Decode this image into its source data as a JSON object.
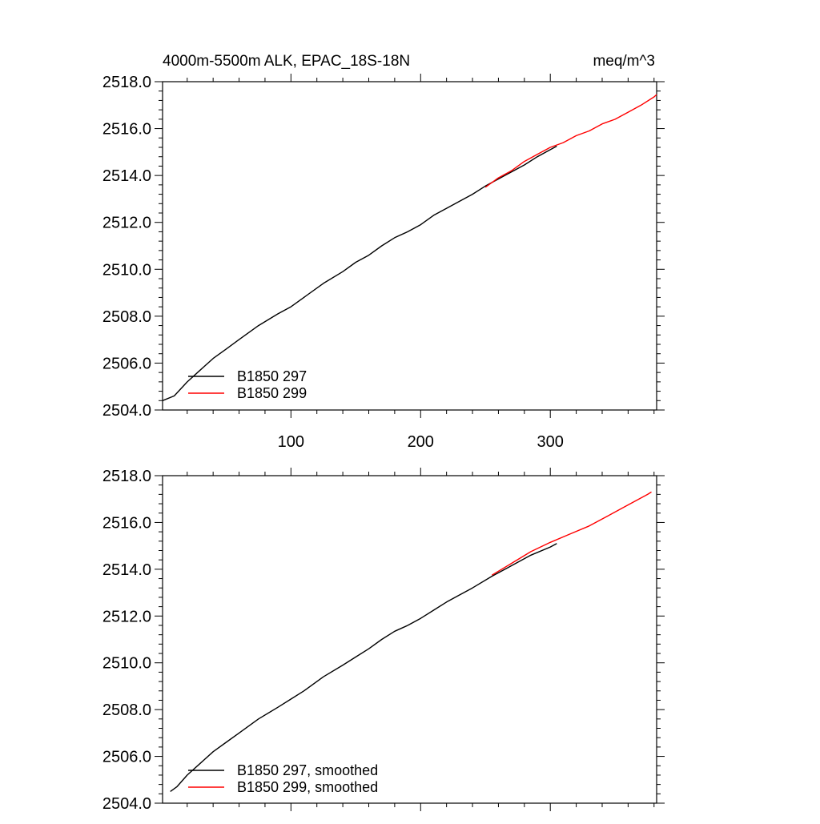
{
  "chart_data": [
    {
      "type": "line",
      "title": "4000m-5500m ALK, EPAC_18S-18N",
      "units": "meq/m^3",
      "xlim": [
        1,
        382
      ],
      "ylim": [
        2504.0,
        2518.0
      ],
      "xticks": [
        100,
        200,
        300
      ],
      "yticks": [
        "2504.0",
        "2506.0",
        "2508.0",
        "2510.0",
        "2512.0",
        "2514.0",
        "2516.0",
        "2518.0"
      ],
      "legend_position": "bottom-left",
      "series": [
        {
          "name": "B1850 297",
          "color": "#000000",
          "x": [
            1,
            10,
            20,
            30,
            40,
            50,
            60,
            75,
            90,
            100,
            110,
            125,
            140,
            150,
            160,
            170,
            180,
            190,
            200,
            210,
            220,
            230,
            240,
            250,
            260,
            270,
            280,
            290,
            300,
            305
          ],
          "y": [
            2504.4,
            2504.6,
            2505.2,
            2505.7,
            2506.2,
            2506.6,
            2507.0,
            2507.6,
            2508.1,
            2508.4,
            2508.8,
            2509.4,
            2509.9,
            2510.3,
            2510.6,
            2511.0,
            2511.35,
            2511.6,
            2511.9,
            2512.3,
            2512.6,
            2512.9,
            2513.2,
            2513.55,
            2513.85,
            2514.15,
            2514.45,
            2514.8,
            2515.1,
            2515.25
          ]
        },
        {
          "name": "B1850 299",
          "color": "#ff0000",
          "x": [
            250,
            260,
            270,
            280,
            290,
            300,
            310,
            320,
            330,
            340,
            350,
            360,
            370,
            380,
            382
          ],
          "y": [
            2513.5,
            2513.9,
            2514.2,
            2514.6,
            2514.9,
            2515.2,
            2515.4,
            2515.7,
            2515.9,
            2516.2,
            2516.4,
            2516.7,
            2517.0,
            2517.35,
            2517.45
          ]
        }
      ]
    },
    {
      "type": "line",
      "xlim": [
        1,
        382
      ],
      "ylim": [
        2504.0,
        2518.0
      ],
      "yticks": [
        "2504.0",
        "2506.0",
        "2508.0",
        "2510.0",
        "2512.0",
        "2514.0",
        "2516.0",
        "2518.0"
      ],
      "legend_position": "bottom-left",
      "series": [
        {
          "name": "B1850 297, smoothed",
          "color": "#000000",
          "x": [
            7,
            12,
            20,
            30,
            40,
            50,
            60,
            75,
            90,
            100,
            110,
            125,
            140,
            150,
            160,
            170,
            180,
            190,
            200,
            210,
            220,
            230,
            240,
            255,
            270,
            285,
            300,
            305
          ],
          "y": [
            2504.5,
            2504.7,
            2505.2,
            2505.7,
            2506.2,
            2506.6,
            2507.0,
            2507.6,
            2508.1,
            2508.45,
            2508.8,
            2509.4,
            2509.9,
            2510.25,
            2510.6,
            2511.0,
            2511.35,
            2511.6,
            2511.9,
            2512.25,
            2512.6,
            2512.9,
            2513.2,
            2513.7,
            2514.15,
            2514.6,
            2514.95,
            2515.1
          ]
        },
        {
          "name": "B1850 299, smoothed",
          "color": "#ff0000",
          "x": [
            255,
            270,
            285,
            300,
            315,
            330,
            345,
            360,
            375,
            378
          ],
          "y": [
            2513.75,
            2514.25,
            2514.75,
            2515.15,
            2515.5,
            2515.85,
            2516.3,
            2516.75,
            2517.2,
            2517.3
          ]
        }
      ]
    }
  ]
}
